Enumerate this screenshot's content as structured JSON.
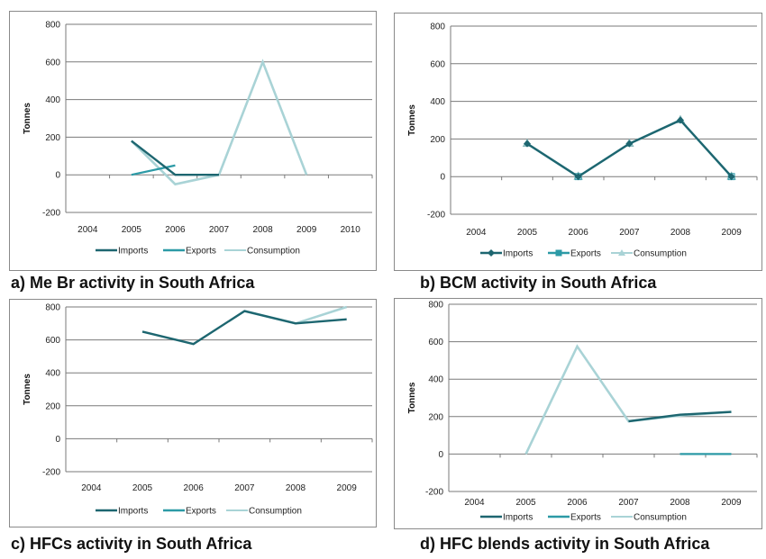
{
  "colors": {
    "imports": "#1d6670",
    "exports": "#2c9aa6",
    "consumption": "#a9d3d6",
    "grid": "#7a7a7a"
  },
  "chart_data": [
    {
      "id": "a",
      "type": "line",
      "caption": "a) Me Br activity in South Africa",
      "title": "",
      "xlabel": "",
      "ylabel": "Tonnes",
      "categories": [
        "2004",
        "2005",
        "2006",
        "2007",
        "2008",
        "2009",
        "2010"
      ],
      "yticks": [
        "800",
        "600",
        "400",
        "200",
        "0",
        "-200"
      ],
      "ylim": [
        -200,
        800
      ],
      "grid": true,
      "legend_position": "bottom",
      "markers": false,
      "series": [
        {
          "name": "Imports",
          "key": "imports",
          "values": [
            null,
            180,
            0,
            0,
            null,
            null,
            null
          ]
        },
        {
          "name": "Exports",
          "key": "exports",
          "values": [
            null,
            0,
            50,
            null,
            null,
            null,
            null
          ]
        },
        {
          "name": "Consumption",
          "key": "consumption",
          "values": [
            null,
            180,
            -50,
            0,
            600,
            0,
            null
          ]
        }
      ]
    },
    {
      "id": "b",
      "type": "line",
      "caption": "b)   BCM activity in South Africa",
      "title": "",
      "xlabel": "",
      "ylabel": "Tonnes",
      "categories": [
        "2004",
        "2005",
        "2006",
        "2007",
        "2008",
        "2009"
      ],
      "yticks": [
        "800",
        "600",
        "400",
        "200",
        "0",
        "-200"
      ],
      "ylim": [
        -200,
        800
      ],
      "grid": true,
      "legend_position": "bottom",
      "markers": true,
      "series": [
        {
          "name": "Imports",
          "key": "imports",
          "marker": "diamond",
          "values": [
            null,
            175,
            0,
            175,
            300,
            0
          ]
        },
        {
          "name": "Exports",
          "key": "exports",
          "marker": "square",
          "values": [
            null,
            null,
            0,
            null,
            null,
            0
          ]
        },
        {
          "name": "Consumption",
          "key": "consumption",
          "marker": "triangle",
          "values": [
            null,
            175,
            0,
            175,
            300,
            0
          ]
        }
      ]
    },
    {
      "id": "c",
      "type": "line",
      "caption": "c)   HFCs activity in South Africa",
      "title": "",
      "xlabel": "",
      "ylabel": "Tonnes",
      "categories": [
        "2004",
        "2005",
        "2006",
        "2007",
        "2008",
        "2009"
      ],
      "yticks": [
        "800",
        "600",
        "400",
        "200",
        "0",
        "-200"
      ],
      "ylim": [
        -200,
        800
      ],
      "grid": true,
      "legend_position": "bottom",
      "markers": false,
      "series": [
        {
          "name": "Imports",
          "key": "imports",
          "values": [
            null,
            650,
            575,
            775,
            700,
            725
          ]
        },
        {
          "name": "Exports",
          "key": "exports",
          "values": [
            null,
            null,
            null,
            null,
            null,
            null
          ]
        },
        {
          "name": "Consumption",
          "key": "consumption",
          "values": [
            null,
            null,
            null,
            775,
            700,
            800
          ]
        }
      ]
    },
    {
      "id": "d",
      "type": "line",
      "caption": "d)   HFC blends activity in South Africa",
      "title": "",
      "xlabel": "",
      "ylabel": "Tonnes",
      "categories": [
        "2004",
        "2005",
        "2006",
        "2007",
        "2008",
        "2009"
      ],
      "yticks": [
        "800",
        "600",
        "400",
        "200",
        "0",
        "-200"
      ],
      "ylim": [
        -200,
        800
      ],
      "grid": true,
      "legend_position": "bottom",
      "markers": false,
      "series": [
        {
          "name": "Imports",
          "key": "imports",
          "values": [
            null,
            null,
            null,
            175,
            210,
            225
          ]
        },
        {
          "name": "Exports",
          "key": "exports",
          "values": [
            null,
            null,
            null,
            null,
            0,
            0
          ]
        },
        {
          "name": "Consumption",
          "key": "consumption",
          "values": [
            null,
            0,
            575,
            175,
            205,
            225
          ]
        }
      ]
    }
  ]
}
